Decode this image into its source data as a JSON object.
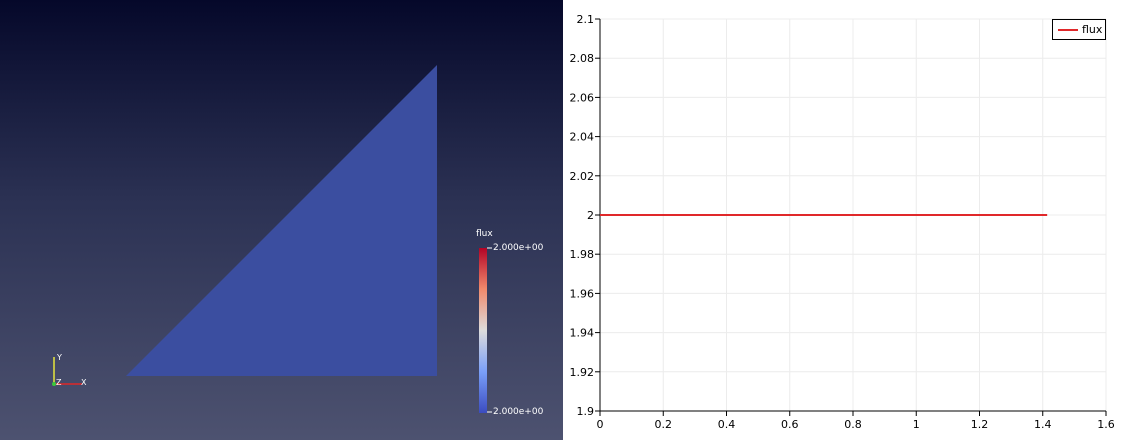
{
  "render_view": {
    "colorbar": {
      "title": "flux",
      "max_label": "2.000e+00",
      "min_label": "2.000e+00",
      "colors": [
        "#b40426",
        "#f08a6c",
        "#dddcdc",
        "#7a9ff8",
        "#3b4cc0"
      ]
    },
    "axes_labels": {
      "x": "X",
      "y": "Y",
      "z": "Z"
    },
    "surface_color": "#3b4ea0"
  },
  "chart_data": {
    "type": "line",
    "title": "",
    "xlabel": "",
    "ylabel": "",
    "xlim": [
      0,
      1.6
    ],
    "ylim": [
      1.9,
      2.1
    ],
    "x_ticks": [
      "0",
      "0.2",
      "0.4",
      "0.6",
      "0.8",
      "1",
      "1.2",
      "1.4",
      "1.6"
    ],
    "y_ticks": [
      "1.9",
      "1.92",
      "1.94",
      "1.96",
      "1.98",
      "2",
      "2.02",
      "2.04",
      "2.06",
      "2.08",
      "2.1"
    ],
    "grid": true,
    "legend_position": "top-right",
    "series": [
      {
        "name": "flux",
        "color": "#e0282a",
        "x": [
          0,
          1.414
        ],
        "y": [
          2,
          2
        ]
      }
    ]
  }
}
